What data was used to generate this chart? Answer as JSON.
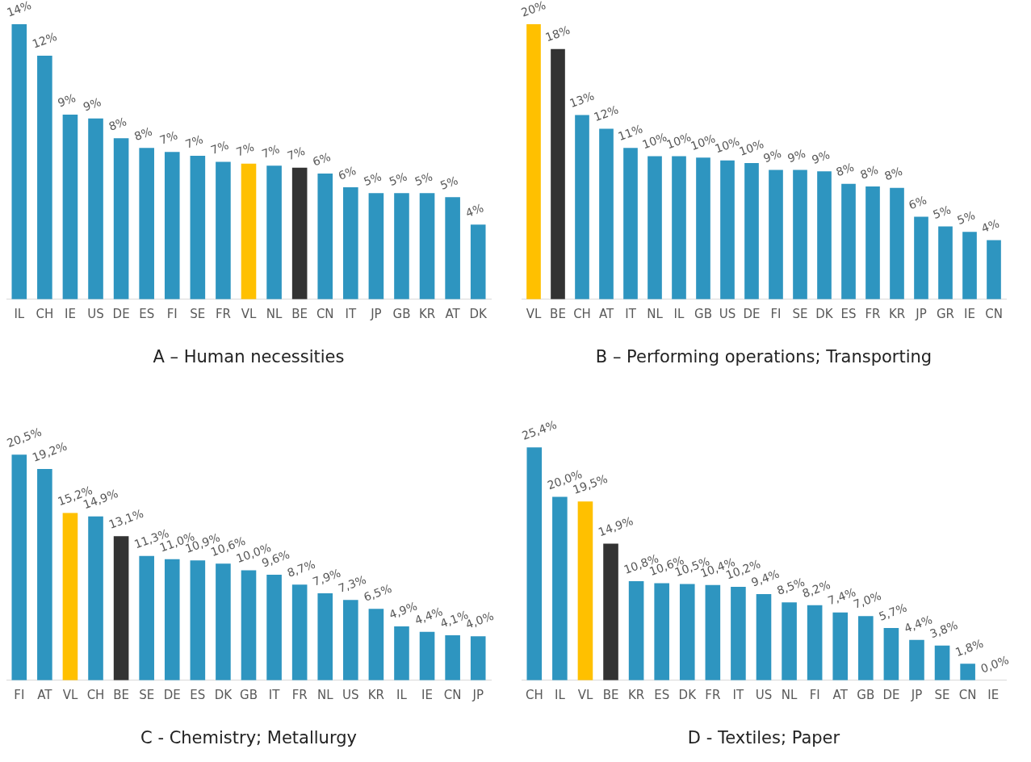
{
  "chart_data": [
    {
      "type": "bar",
      "title": "A – Human necessities",
      "categories": [
        "IL",
        "CH",
        "IE",
        "US",
        "DE",
        "ES",
        "FI",
        "SE",
        "FR",
        "VL",
        "NL",
        "BE",
        "CN",
        "IT",
        "JP",
        "GB",
        "KR",
        "AT",
        "DK"
      ],
      "values": [
        14.0,
        12.4,
        9.4,
        9.2,
        8.2,
        7.7,
        7.5,
        7.3,
        7.0,
        6.9,
        6.8,
        6.7,
        6.4,
        5.7,
        5.4,
        5.4,
        5.4,
        5.2,
        3.8
      ],
      "value_labels": [
        "14%",
        "12%",
        "9%",
        "9%",
        "8%",
        "8%",
        "7%",
        "7%",
        "7%",
        "7%",
        "7%",
        "7%",
        "6%",
        "6%",
        "5%",
        "5%",
        "5%",
        "5%",
        "4%"
      ],
      "colors": [
        "#2e95c0",
        "#2e95c0",
        "#2e95c0",
        "#2e95c0",
        "#2e95c0",
        "#2e95c0",
        "#2e95c0",
        "#2e95c0",
        "#2e95c0",
        "#ffc000",
        "#2e95c0",
        "#333333",
        "#2e95c0",
        "#2e95c0",
        "#2e95c0",
        "#2e95c0",
        "#2e95c0",
        "#2e95c0",
        "#2e95c0"
      ],
      "tick_labels": "x",
      "grid": false
    },
    {
      "type": "bar",
      "title": "B – Performing operations; Transporting",
      "categories": [
        "VL",
        "BE",
        "CH",
        "AT",
        "IT",
        "NL",
        "IL",
        "GB",
        "US",
        "DE",
        "FI",
        "SE",
        "DK",
        "ES",
        "FR",
        "KR",
        "JP",
        "GR",
        "IE",
        "CN"
      ],
      "values": [
        20.0,
        18.2,
        13.4,
        12.4,
        11.0,
        10.4,
        10.4,
        10.3,
        10.1,
        9.9,
        9.4,
        9.4,
        9.3,
        8.4,
        8.2,
        8.1,
        6.0,
        5.3,
        4.9,
        4.3
      ],
      "value_labels": [
        "20%",
        "18%",
        "13%",
        "12%",
        "11%",
        "10%",
        "10%",
        "10%",
        "10%",
        "10%",
        "9%",
        "9%",
        "9%",
        "8%",
        "8%",
        "8%",
        "6%",
        "5%",
        "5%",
        "4%"
      ],
      "colors": [
        "#ffc000",
        "#333333",
        "#2e95c0",
        "#2e95c0",
        "#2e95c0",
        "#2e95c0",
        "#2e95c0",
        "#2e95c0",
        "#2e95c0",
        "#2e95c0",
        "#2e95c0",
        "#2e95c0",
        "#2e95c0",
        "#2e95c0",
        "#2e95c0",
        "#2e95c0",
        "#2e95c0",
        "#2e95c0",
        "#2e95c0",
        "#2e95c0"
      ],
      "tick_labels": "x",
      "grid": false
    },
    {
      "type": "bar",
      "title": "C - Chemistry; Metallurgy",
      "categories": [
        "FI",
        "AT",
        "VL",
        "CH",
        "BE",
        "SE",
        "DE",
        "ES",
        "DK",
        "GB",
        "IT",
        "FR",
        "NL",
        "US",
        "KR",
        "IL",
        "IE",
        "CN",
        "JP"
      ],
      "values": [
        20.5,
        19.2,
        15.2,
        14.9,
        13.1,
        11.3,
        11.0,
        10.9,
        10.6,
        10.0,
        9.6,
        8.7,
        7.9,
        7.3,
        6.5,
        4.9,
        4.4,
        4.1,
        4.0
      ],
      "value_labels": [
        "20,5%",
        "19,2%",
        "15,2%",
        "14,9%",
        "13,1%",
        "11,3%",
        "11,0%",
        "10,9%",
        "10,6%",
        "10,0%",
        "9,6%",
        "8,7%",
        "7,9%",
        "7,3%",
        "6,5%",
        "4,9%",
        "4,4%",
        "4,1%",
        "4,0%"
      ],
      "colors": [
        "#2e95c0",
        "#2e95c0",
        "#ffc000",
        "#2e95c0",
        "#333333",
        "#2e95c0",
        "#2e95c0",
        "#2e95c0",
        "#2e95c0",
        "#2e95c0",
        "#2e95c0",
        "#2e95c0",
        "#2e95c0",
        "#2e95c0",
        "#2e95c0",
        "#2e95c0",
        "#2e95c0",
        "#2e95c0",
        "#2e95c0"
      ],
      "tick_labels": "x",
      "grid": false
    },
    {
      "type": "bar",
      "title": "D - Textiles; Paper",
      "categories": [
        "CH",
        "IL",
        "VL",
        "BE",
        "KR",
        "ES",
        "DK",
        "FR",
        "IT",
        "US",
        "NL",
        "FI",
        "AT",
        "GB",
        "DE",
        "JP",
        "SE",
        "CN",
        "IE"
      ],
      "values": [
        25.4,
        20.0,
        19.5,
        14.9,
        10.8,
        10.6,
        10.5,
        10.4,
        10.2,
        9.4,
        8.5,
        8.2,
        7.4,
        7.0,
        5.7,
        4.4,
        3.8,
        1.8,
        0.0
      ],
      "value_labels": [
        "25,4%",
        "20,0%",
        "19,5%",
        "14,9%",
        "10,8%",
        "10,6%",
        "10,5%",
        "10,4%",
        "10,2%",
        "9,4%",
        "8,5%",
        "8,2%",
        "7,4%",
        "7,0%",
        "5,7%",
        "4,4%",
        "3,8%",
        "1,8%",
        "0,0%"
      ],
      "colors": [
        "#2e95c0",
        "#2e95c0",
        "#ffc000",
        "#333333",
        "#2e95c0",
        "#2e95c0",
        "#2e95c0",
        "#2e95c0",
        "#2e95c0",
        "#2e95c0",
        "#2e95c0",
        "#2e95c0",
        "#2e95c0",
        "#2e95c0",
        "#2e95c0",
        "#2e95c0",
        "#2e95c0",
        "#2e95c0",
        "#2e95c0"
      ],
      "tick_labels": "x",
      "grid": false
    }
  ]
}
